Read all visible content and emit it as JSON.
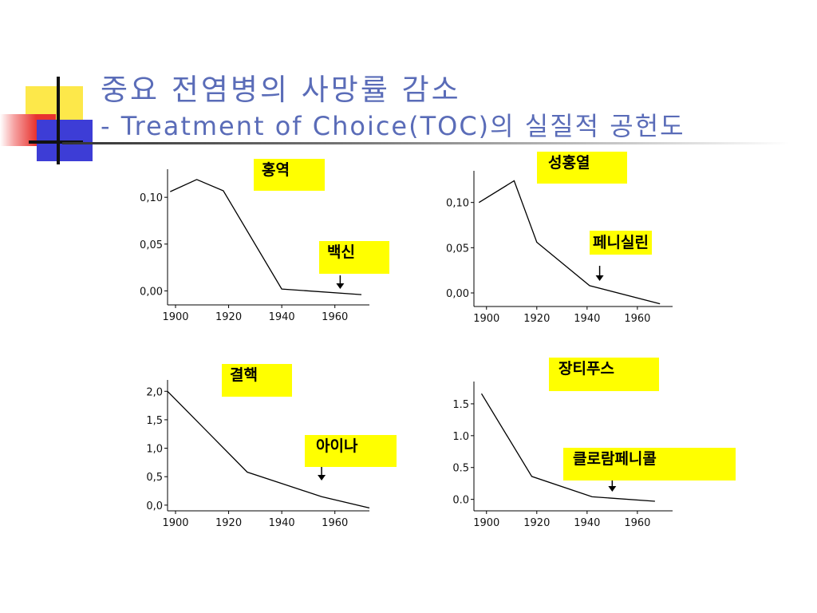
{
  "title": {
    "line1": "중요 전염병의 사망률 감소",
    "line2": "- Treatment of Choice(TOC)의 실질적 공헌도"
  },
  "colors": {
    "title": "#5a6cb8",
    "label_bg": "#ffff00",
    "line": "#000000"
  },
  "chart_data": [
    {
      "type": "line",
      "disease_label": "홍역",
      "intervention_label": "백신",
      "intervention_year": 1962,
      "x": [
        1898,
        1908,
        1918,
        1940,
        1970
      ],
      "y": [
        0.106,
        0.119,
        0.107,
        0.002,
        -0.004
      ],
      "xlim": [
        1897,
        1973
      ],
      "ylim": [
        -0.015,
        0.13
      ],
      "xticks": [
        1900,
        1920,
        1940,
        1960
      ],
      "yticks": [
        0.0,
        0.05,
        0.1
      ],
      "yticklabels": [
        "0,00",
        "0,05",
        "0,10"
      ],
      "grid": false
    },
    {
      "type": "line",
      "disease_label": "성홍열",
      "intervention_label": "페니실린",
      "intervention_year": 1945,
      "x": [
        1897,
        1911,
        1920,
        1941,
        1969
      ],
      "y": [
        0.1,
        0.124,
        0.056,
        0.008,
        -0.012
      ],
      "xlim": [
        1895,
        1974
      ],
      "ylim": [
        -0.015,
        0.135
      ],
      "xticks": [
        1900,
        1920,
        1940,
        1960
      ],
      "yticks": [
        0.0,
        0.05,
        0.1
      ],
      "yticklabels": [
        "0,00",
        "0,05",
        "0,10"
      ],
      "grid": false
    },
    {
      "type": "line",
      "disease_label": "결핵",
      "intervention_label": "아이나",
      "intervention_year": 1955,
      "x": [
        1897,
        1927,
        1940,
        1955,
        1973
      ],
      "y": [
        2.0,
        0.58,
        0.38,
        0.15,
        -0.05
      ],
      "xlim": [
        1897,
        1973
      ],
      "ylim": [
        -0.1,
        2.2
      ],
      "xticks": [
        1900,
        1920,
        1940,
        1960
      ],
      "yticks": [
        0.0,
        0.5,
        1.0,
        1.5,
        2.0
      ],
      "yticklabels": [
        "0,0",
        "0,5",
        "1,0",
        "1,5",
        "2,0"
      ],
      "grid": false
    },
    {
      "type": "line",
      "disease_label": "장티푸스",
      "intervention_label": "클로람페니콜",
      "intervention_year": 1950,
      "x": [
        1898,
        1918,
        1942,
        1967
      ],
      "y": [
        1.66,
        0.36,
        0.04,
        -0.03
      ],
      "xlim": [
        1895,
        1974
      ],
      "ylim": [
        -0.18,
        1.85
      ],
      "xticks": [
        1900,
        1920,
        1940,
        1960
      ],
      "yticks": [
        0.0,
        0.5,
        1.0,
        1.5
      ],
      "yticklabels": [
        "0.0",
        "0.5",
        "1.0",
        "1.5"
      ],
      "grid": false
    }
  ]
}
